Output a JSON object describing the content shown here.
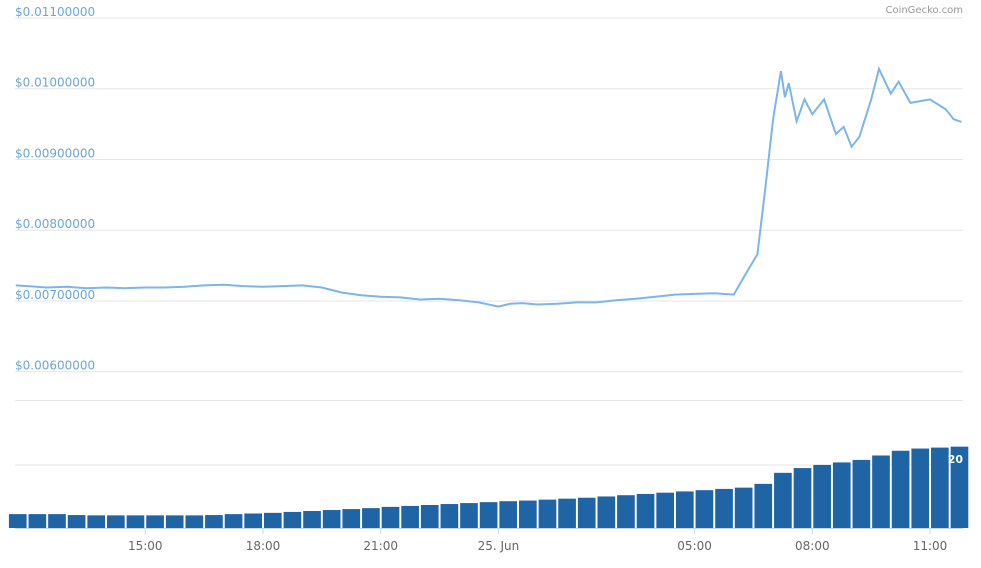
{
  "chart_data": [
    {
      "type": "line",
      "credit": "CoinGecko.com",
      "color": "#7cb5ec",
      "grid": true,
      "xlim": [
        11.68,
        35.84
      ],
      "ylim": [
        0.0056,
        0.011
      ],
      "yticks": [
        {
          "value": 0.011,
          "label": "$0.01100000"
        },
        {
          "value": 0.01,
          "label": "$0.01000000"
        },
        {
          "value": 0.009,
          "label": "$0.00900000"
        },
        {
          "value": 0.008,
          "label": "$0.00800000"
        },
        {
          "value": 0.007,
          "label": "$0.00700000"
        },
        {
          "value": 0.006,
          "label": "$0.00600000"
        }
      ],
      "x": [
        11.7,
        12,
        12.5,
        13,
        13.5,
        14,
        14.5,
        15,
        15.5,
        16,
        16.5,
        17,
        17.5,
        18,
        18.5,
        19,
        19.5,
        20,
        20.5,
        21,
        21.5,
        22,
        22.5,
        23,
        23.5,
        24,
        24.3,
        24.6,
        25,
        25.5,
        26,
        26.5,
        27,
        27.5,
        28,
        28.5,
        29,
        29.5,
        30,
        30.3,
        30.6,
        30.8,
        31,
        31.2,
        31.3,
        31.4,
        31.6,
        31.8,
        32,
        32.3,
        32.6,
        32.8,
        33,
        33.2,
        33.5,
        33.7,
        34,
        34.2,
        34.5,
        35,
        35.4,
        35.6,
        35.8
      ],
      "values": [
        0.00722,
        0.00721,
        0.00719,
        0.0072,
        0.00718,
        0.00719,
        0.00718,
        0.00719,
        0.00719,
        0.0072,
        0.00722,
        0.00723,
        0.00721,
        0.0072,
        0.00721,
        0.00722,
        0.00719,
        0.00712,
        0.00708,
        0.00706,
        0.00705,
        0.00702,
        0.00703,
        0.00701,
        0.00698,
        0.00692,
        0.00696,
        0.00697,
        0.00695,
        0.00696,
        0.00698,
        0.00698,
        0.00701,
        0.00703,
        0.00706,
        0.00709,
        0.0071,
        0.00711,
        0.00709,
        0.00738,
        0.00766,
        0.00858,
        0.00957,
        0.01025,
        0.00988,
        0.01008,
        0.00954,
        0.00985,
        0.00964,
        0.00985,
        0.00936,
        0.00946,
        0.00918,
        0.00932,
        0.00985,
        0.01028,
        0.00993,
        0.0101,
        0.0098,
        0.00985,
        0.00971,
        0.00957,
        0.00953
      ]
    },
    {
      "type": "bar",
      "color": "#1f64a4",
      "grid": true,
      "xlim": [
        11.68,
        35.84
      ],
      "ylim": [
        0,
        40.6
      ],
      "yticks": [
        20
      ],
      "xticks": [
        {
          "value": 15,
          "label": "15:00"
        },
        {
          "value": 18,
          "label": "18:00"
        },
        {
          "value": 21,
          "label": "21:00"
        },
        {
          "value": 24,
          "label": "25. Jun"
        },
        {
          "value": 29,
          "label": "05:00"
        },
        {
          "value": 32,
          "label": "08:00"
        },
        {
          "value": 35,
          "label": "11:00"
        }
      ],
      "x": [
        11.75,
        12.25,
        12.75,
        13.25,
        13.75,
        14.25,
        14.75,
        15.25,
        15.75,
        16.25,
        16.75,
        17.25,
        17.75,
        18.25,
        18.75,
        19.25,
        19.75,
        20.25,
        20.75,
        21.25,
        21.75,
        22.25,
        22.75,
        23.25,
        23.75,
        24.25,
        24.75,
        25.25,
        25.75,
        26.25,
        26.75,
        27.25,
        27.75,
        28.25,
        28.75,
        29.25,
        29.75,
        30.25,
        30.75,
        31.25,
        31.75,
        32.25,
        32.75,
        33.25,
        33.75,
        34.25,
        34.75,
        35.25,
        35.75
      ],
      "values": [
        4.4,
        4.4,
        4.4,
        4.1,
        4.0,
        4.0,
        4.0,
        4.0,
        4.0,
        4.0,
        4.1,
        4.4,
        4.6,
        4.8,
        5.1,
        5.4,
        5.7,
        6.0,
        6.3,
        6.7,
        7.0,
        7.3,
        7.6,
        7.9,
        8.2,
        8.5,
        8.7,
        9.0,
        9.3,
        9.6,
        10.0,
        10.4,
        10.8,
        11.2,
        11.6,
        12.0,
        12.4,
        12.8,
        14.0,
        17.5,
        19.0,
        20.0,
        20.8,
        21.6,
        23.0,
        24.5,
        25.2,
        25.5,
        25.8
      ]
    }
  ]
}
